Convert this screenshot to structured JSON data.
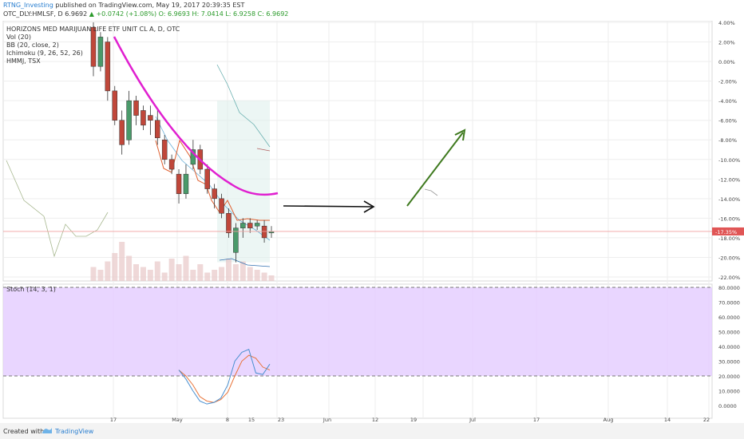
{
  "header": {
    "author": "RTNG_Investing",
    "published": " published on TradingView.com, May 19, 2017 20:39:35 EST",
    "symbol": "OTC_DLY:HMLSF, D",
    "last": "6.9692",
    "change": "▲ +0.0742 (+1.08%)",
    "ohlc": "O: 6.9693  H: 7.0414  L: 6.9258  C: 6.9692"
  },
  "indicators": [
    "HORIZONS MED MARIJUAN LIFE ETF UNIT CL A, D, OTC",
    "Vol (20)",
    "BB (20, close, 2)",
    "Ichimoku (9, 26, 52, 26)",
    "HMMJ, TSX"
  ],
  "stoch_label": "Stoch (14, 3, 1)",
  "footer": {
    "created_with": "Created with",
    "brand": "TradingView"
  },
  "colors": {
    "up": "#4a9a6a",
    "down": "#c0473a",
    "arc": "#e020d0",
    "black_arrow": "#111111",
    "green_arrow": "#3f7a1f",
    "stoch_fill": "#e3ccff",
    "stoch_k": "#4a90d0",
    "stoch_d": "#e8743a",
    "last_price_tag": "#e05555"
  },
  "chart_data": [
    {
      "type": "candlestick",
      "title": "HORIZONS MED MARIJUAN LIFE ETF UNIT CL A, D, OTC",
      "y_axis": "percent",
      "ylim": [
        -22,
        4
      ],
      "yticks": [
        "4.00%",
        "2.00%",
        "0.00%",
        "-2.00%",
        "-4.00%",
        "-6.00%",
        "-8.00%",
        "-10.00%",
        "-12.00%",
        "-14.00%",
        "-16.00%",
        "-18.00%",
        "-20.00%",
        "-22.00%"
      ],
      "x_ticks": [
        "17",
        "May",
        "8",
        "15",
        "23",
        "Jun",
        "12",
        "19",
        "Jul",
        "17",
        "Aug",
        "14",
        "22"
      ],
      "last_value_label": "-17.35%",
      "last_value": -17.35,
      "candles": [
        {
          "o": 3.5,
          "h": 4.0,
          "l": -1.5,
          "c": -0.5
        },
        {
          "o": -0.5,
          "h": 3.0,
          "l": -1.0,
          "c": 2.5
        },
        {
          "o": 2.0,
          "h": 2.5,
          "l": -4.0,
          "c": -3.0
        },
        {
          "o": -3.0,
          "h": -2.5,
          "l": -6.5,
          "c": -6.0
        },
        {
          "o": -6.0,
          "h": -5.0,
          "l": -9.5,
          "c": -8.5
        },
        {
          "o": -8.0,
          "h": -3.0,
          "l": -8.5,
          "c": -4.0
        },
        {
          "o": -4.0,
          "h": -3.5,
          "l": -6.5,
          "c": -5.5
        },
        {
          "o": -5.0,
          "h": -4.5,
          "l": -7.0,
          "c": -6.5
        },
        {
          "o": -5.5,
          "h": -4.5,
          "l": -7.5,
          "c": -6.0
        },
        {
          "o": -6.0,
          "h": -5.0,
          "l": -8.5,
          "c": -7.8
        },
        {
          "o": -8.0,
          "h": -7.5,
          "l": -10.5,
          "c": -10.0
        },
        {
          "o": -10.0,
          "h": -9.5,
          "l": -11.5,
          "c": -11.0
        },
        {
          "o": -11.5,
          "h": -11.0,
          "l": -14.5,
          "c": -13.5
        },
        {
          "o": -13.5,
          "h": -10.5,
          "l": -14.0,
          "c": -11.5
        },
        {
          "o": -10.5,
          "h": -8.0,
          "l": -11.0,
          "c": -9.0
        },
        {
          "o": -9.0,
          "h": -8.5,
          "l": -11.5,
          "c": -11.0
        },
        {
          "o": -11.0,
          "h": -10.5,
          "l": -13.5,
          "c": -13.0
        },
        {
          "o": -13.0,
          "h": -12.5,
          "l": -15.0,
          "c": -14.0
        },
        {
          "o": -14.0,
          "h": -13.5,
          "l": -16.0,
          "c": -15.5
        },
        {
          "o": -15.5,
          "h": -15.0,
          "l": -18.0,
          "c": -17.5
        },
        {
          "o": -19.5,
          "h": -16.5,
          "l": -20.5,
          "c": -17.0
        },
        {
          "o": -17.0,
          "h": -16.0,
          "l": -18.0,
          "c": -16.5
        },
        {
          "o": -16.5,
          "h": -16.0,
          "l": -17.5,
          "c": -17.0
        },
        {
          "o": -16.8,
          "h": -16.2,
          "l": -17.2,
          "c": -16.5
        },
        {
          "o": -16.8,
          "h": -16.2,
          "l": -18.5,
          "c": -18.0
        },
        {
          "o": -17.5,
          "h": -16.8,
          "l": -18.0,
          "c": -17.35
        }
      ],
      "volume": [
        0.25,
        0.2,
        0.35,
        0.5,
        0.7,
        0.45,
        0.3,
        0.25,
        0.2,
        0.35,
        0.15,
        0.4,
        0.3,
        0.45,
        0.2,
        0.3,
        0.15,
        0.2,
        0.25,
        0.4,
        0.3,
        0.35,
        0.25,
        0.2,
        0.15,
        0.1
      ]
    },
    {
      "type": "line",
      "title": "Stoch (14, 3, 1)",
      "ylim": [
        -5,
        82
      ],
      "yticks": [
        "80.0000",
        "70.0000",
        "60.0000",
        "50.0000",
        "40.0000",
        "30.0000",
        "20.0000",
        "10.0000",
        "0.0000"
      ],
      "bands": [
        20,
        80
      ],
      "series": [
        {
          "values": [
            24,
            18,
            10,
            3,
            1,
            2,
            5,
            14,
            30,
            36,
            38,
            22,
            21,
            28
          ]
        },
        {
          "values": [
            24,
            20,
            14,
            6,
            3,
            2,
            4,
            9,
            20,
            30,
            34,
            32,
            26,
            24
          ]
        }
      ]
    }
  ]
}
